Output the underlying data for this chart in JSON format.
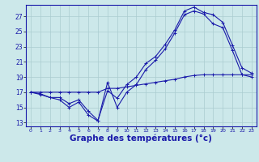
{
  "background_color": "#cce8ea",
  "line_color": "#1a1aaa",
  "grid_color": "#aaccd0",
  "xlabel": "Graphe des températures (°c)",
  "xlabel_fontsize": 7.5,
  "xtick_labels": [
    "0",
    "1",
    "2",
    "3",
    "4",
    "5",
    "6",
    "7",
    "8",
    "9",
    "10",
    "11",
    "12",
    "13",
    "14",
    "15",
    "16",
    "17",
    "18",
    "19",
    "20",
    "21",
    "22",
    "23"
  ],
  "yticks": [
    13,
    15,
    17,
    19,
    21,
    23,
    25,
    27
  ],
  "xlim": [
    -0.5,
    23.5
  ],
  "ylim": [
    12.5,
    28.5
  ],
  "series1_x": [
    0,
    1,
    2,
    3,
    4,
    5,
    6,
    7,
    8,
    9,
    10,
    11,
    12,
    13,
    14,
    15,
    16,
    17,
    18,
    19,
    20,
    21,
    22,
    23
  ],
  "series1_y": [
    17.0,
    16.7,
    16.3,
    16.0,
    15.0,
    15.7,
    14.0,
    13.2,
    18.3,
    15.0,
    17.0,
    18.0,
    20.0,
    21.2,
    22.7,
    24.8,
    27.2,
    27.7,
    27.3,
    26.0,
    25.5,
    22.5,
    19.3,
    19.0
  ],
  "series2_x": [
    0,
    1,
    2,
    3,
    4,
    5,
    6,
    7,
    8,
    9,
    10,
    11,
    12,
    13,
    14,
    15,
    16,
    17,
    18,
    19,
    20,
    21,
    22,
    23
  ],
  "series2_y": [
    17.0,
    16.8,
    16.3,
    16.3,
    15.5,
    16.0,
    14.5,
    13.3,
    17.2,
    16.2,
    18.0,
    19.0,
    20.8,
    21.7,
    23.3,
    25.2,
    27.7,
    28.2,
    27.5,
    27.2,
    26.2,
    23.2,
    20.2,
    19.5
  ],
  "series3_x": [
    0,
    1,
    2,
    3,
    4,
    5,
    6,
    7,
    8,
    9,
    10,
    11,
    12,
    13,
    14,
    15,
    16,
    17,
    18,
    19,
    20,
    21,
    22,
    23
  ],
  "series3_y": [
    17.0,
    17.0,
    17.0,
    17.0,
    17.0,
    17.0,
    17.0,
    17.0,
    17.5,
    17.5,
    17.7,
    17.9,
    18.1,
    18.3,
    18.5,
    18.7,
    19.0,
    19.2,
    19.3,
    19.3,
    19.3,
    19.3,
    19.3,
    19.3
  ]
}
